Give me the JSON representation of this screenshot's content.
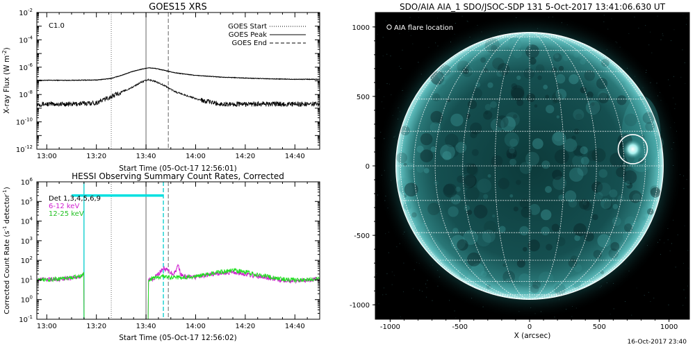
{
  "chart_data": [
    {
      "type": "line",
      "title": "GOES15 XRS",
      "xlabel": "Start Time (05-Oct-17 12:56:01)",
      "ylabel": "X-ray Flux (W m⁻²)",
      "ylabel_main": "X-ray Flux (W m",
      "ylabel_sup": "-2",
      "ylabel_close": ")",
      "yscale": "log",
      "ylim": [
        1e-12,
        0.01
      ],
      "xlim": [
        "12:56",
        "14:50"
      ],
      "x_ticks": [
        "13:00",
        "13:20",
        "13:40",
        "14:00",
        "14:20",
        "14:40"
      ],
      "y_ticks": [
        {
          "value": 1e-12,
          "exp": "-12"
        },
        {
          "value": 1e-10,
          "exp": "-10"
        },
        {
          "value": 1e-08,
          "exp": "-8"
        },
        {
          "value": 1e-06,
          "exp": "-6"
        },
        {
          "value": 0.0001,
          "exp": "-4"
        },
        {
          "value": 0.01,
          "exp": "-2"
        }
      ],
      "annotation": "C1.0",
      "legend": [
        {
          "label": "GOES Start",
          "style": "dotted"
        },
        {
          "label": "GOES Peak",
          "style": "solid"
        },
        {
          "label": "GOES End",
          "style": "dashed"
        }
      ],
      "vlines": [
        {
          "x": "13:26",
          "style": "dotted",
          "color": "#888888"
        },
        {
          "x": "13:40",
          "style": "solid",
          "color": "#888888"
        },
        {
          "x": "13:49",
          "style": "dashed",
          "color": "#888888"
        }
      ],
      "series": [
        {
          "color": "#000000",
          "x": [
            "12:56",
            "13:10",
            "13:20",
            "13:26",
            "13:30",
            "13:34",
            "13:38",
            "13:41",
            "13:44",
            "13:48",
            "13:52",
            "14:00",
            "14:10",
            "14:20",
            "14:30",
            "14:40",
            "14:50"
          ],
          "y": [
            1.1e-07,
            1.1e-07,
            1.15e-07,
            1.5e-07,
            2.5e-07,
            4.5e-07,
            7e-07,
            9e-07,
            8e-07,
            5.5e-07,
            3.8e-07,
            2.5e-07,
            1.9e-07,
            1.6e-07,
            1.4e-07,
            1.3e-07,
            1.3e-07
          ]
        },
        {
          "color": "#000000",
          "x": [
            "12:56",
            "13:10",
            "13:20",
            "13:26",
            "13:30",
            "13:34",
            "13:38",
            "13:41",
            "13:44",
            "13:48",
            "13:52",
            "14:00",
            "14:05",
            "14:10",
            "14:20",
            "14:30",
            "14:40",
            "14:50"
          ],
          "y": [
            2e-09,
            2e-09,
            2.5e-09,
            7e-09,
            1.5e-08,
            3e-08,
            8e-08,
            1.2e-07,
            9e-08,
            4e-08,
            1.5e-08,
            5e-09,
            3e-09,
            2e-09,
            2e-09,
            2e-09,
            2e-09,
            2e-09
          ]
        }
      ]
    },
    {
      "type": "line",
      "title": "HESSI Observing Summary Count Rates, Corrected",
      "xlabel": "Start Time (05-Oct-17 12:56:02)",
      "ylabel": "Corrected Count Rate (s⁻¹ detector⁻¹)",
      "ylabel_main": "Corrected Count Rate (s",
      "ylabel_sup1": "-1",
      "ylabel_mid": " detector",
      "ylabel_sup2": "-1",
      "ylabel_close": ")",
      "yscale": "log",
      "ylim": [
        0.1,
        1000000
      ],
      "xlim": [
        "12:56",
        "14:50"
      ],
      "x_ticks": [
        "13:00",
        "13:20",
        "13:40",
        "14:00",
        "14:20",
        "14:40"
      ],
      "y_ticks": [
        {
          "value": 0.1,
          "exp": "-1"
        },
        {
          "value": 1,
          "exp": "0"
        },
        {
          "value": 10,
          "exp": "1"
        },
        {
          "value": 100,
          "exp": "2"
        },
        {
          "value": 1000,
          "exp": "3"
        },
        {
          "value": 10000,
          "exp": "4"
        },
        {
          "value": 100000,
          "exp": "5"
        },
        {
          "value": 1000000,
          "exp": "6"
        }
      ],
      "legend": [
        {
          "label": "Det 1,3,4,5,6,9",
          "color": "#000000"
        },
        {
          "label": "6-12 keV",
          "color": "#d020d0"
        },
        {
          "label": "12-25 keV",
          "color": "#20e020"
        }
      ],
      "vlines": [
        {
          "x": "13:26",
          "style": "dotted",
          "color": "#888888"
        },
        {
          "x": "13:40",
          "style": "solid",
          "color": "#888888"
        },
        {
          "x": "13:49",
          "style": "dashed",
          "color": "#888888"
        },
        {
          "x": "13:15",
          "style": "solid",
          "color": "#00cccc"
        },
        {
          "x": "13:47",
          "style": "dashed",
          "color": "#00cccc"
        }
      ],
      "hbar": {
        "x_start": "13:10",
        "x_end": "13:47",
        "y": 200000,
        "color": "#00e0e0"
      },
      "series": [
        {
          "name": "6-12 keV",
          "color": "#d020d0",
          "x": [
            "12:56",
            "13:05",
            "13:14",
            "13:15",
            "13:15",
            "13:40",
            "13:41",
            "13:43",
            "13:45",
            "13:47",
            "13:49",
            "13:51",
            "13:52",
            "13:53",
            "13:54",
            "13:55",
            "13:57",
            "14:00",
            "14:05",
            "14:10",
            "14:15",
            "14:20",
            "14:25",
            "14:30",
            "14:35",
            "14:40",
            "14:45",
            "14:50"
          ],
          "y": [
            10,
            11,
            15,
            20,
            0.1,
            0.1,
            10,
            12,
            20,
            40,
            30,
            20,
            30,
            60,
            20,
            15,
            14,
            14,
            18,
            22,
            25,
            20,
            15,
            12,
            10,
            9,
            10,
            11
          ]
        },
        {
          "name": "12-25 keV",
          "color": "#20e020",
          "x": [
            "12:56",
            "13:05",
            "13:14",
            "13:15",
            "13:15",
            "13:40",
            "13:41",
            "13:43",
            "13:45",
            "13:47",
            "13:49",
            "13:52",
            "13:55",
            "14:00",
            "14:05",
            "14:10",
            "14:15",
            "14:20",
            "14:25",
            "14:30",
            "14:35",
            "14:40",
            "14:45",
            "14:50"
          ],
          "y": [
            10,
            11,
            16,
            25,
            0.1,
            0.1,
            10,
            12,
            14,
            16,
            14,
            13,
            13,
            15,
            20,
            26,
            30,
            25,
            18,
            14,
            11,
            10,
            10,
            12
          ]
        }
      ]
    },
    {
      "type": "heatmap",
      "title": "SDO/AIA AIA_1 SDO/JSOC-SDP 131   5-Oct-2017 13:41:06.630 UT",
      "xlabel": "X (arcsec)",
      "ylabel": "",
      "xlim": [
        -1100,
        1100
      ],
      "ylim": [
        -1100,
        1100
      ],
      "x_ticks": [
        "-1000",
        "-500",
        "0",
        "500",
        "1000"
      ],
      "y_ticks": [
        "1000",
        "500",
        "0",
        "-500",
        "-1000"
      ],
      "legend": [
        {
          "label": "AIA flare location",
          "marker": "circle"
        }
      ],
      "colormap": "teal",
      "disk_radius_arcsec": 960,
      "flare_location": {
        "x": 740,
        "y": 120
      },
      "grid_spacing_deg": 15,
      "timestamp": "16-Oct-2017 23:40"
    }
  ]
}
